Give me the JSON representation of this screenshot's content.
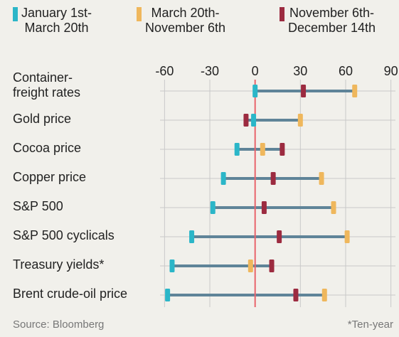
{
  "chart_data": {
    "type": "range-dot",
    "categories": [
      "Container-\nfreight rates",
      "Gold price",
      "Cocoa price",
      "Copper price",
      "S&P 500",
      "S&P 500 cyclicals",
      "Treasury yields*",
      "Brent crude-oil price"
    ],
    "series": [
      {
        "name": "January 1st-\nMarch 20th",
        "color": "#2bb6c8",
        "values": [
          0,
          -1,
          -12,
          -21,
          -28,
          -42,
          -55,
          -58
        ]
      },
      {
        "name": "March 20th-\nNovember 6th",
        "color": "#efb75c",
        "values": [
          66,
          30,
          5,
          44,
          52,
          61,
          -3,
          46
        ]
      },
      {
        "name": "November 6th-\nDecember 14th",
        "color": "#9c2b40",
        "values": [
          32,
          -6,
          18,
          12,
          6,
          16,
          11,
          27
        ]
      }
    ],
    "xlim": [
      -63,
      93
    ],
    "xticks": [
      -60,
      -30,
      0,
      30,
      60,
      90
    ],
    "source": "Source: Bloomberg",
    "footnote": "*Ten-year"
  }
}
